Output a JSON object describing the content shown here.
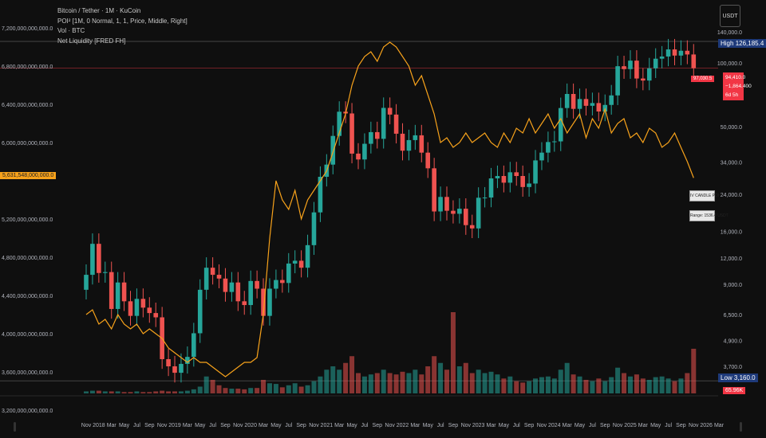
{
  "legend": {
    "symbol": "Bitcoin / Tether · 1M · KuCoin",
    "indicator": "POI² [1M, 0 Normal, 1, 1, Price, Middle, Right]",
    "volume": "Vol · BTC",
    "liquidity": "Net Liquidity [FRED FH]"
  },
  "currency_button": "USDT",
  "labels": {
    "high_tag": "High",
    "high_value": "126,185.4",
    "low_tag": "Low",
    "low_value": "3,160.0",
    "price": "94,410.0",
    "change": "−1,864.400",
    "countdown": "6d 5h",
    "left_price_box": "97,030.5",
    "volume_value": "65.96K",
    "liquidity_value": "5,631,548,000,000.0",
    "poi_title": "IV CANDLE POI",
    "poi_range": "Range: 1536.4 USDT"
  },
  "colors": {
    "up": "#26a69a",
    "down": "#ef5350",
    "liquidity": "#f7a21b",
    "high_label": "#1e3a7a",
    "low_label": "#1e3a7a",
    "price_label": "#f23645",
    "background": "#0f0f0f"
  },
  "chart_data": {
    "type": "candlestick",
    "x_start": "2017-11",
    "interval": "month",
    "btc_close": [
      10000,
      14000,
      10200,
      10300,
      6900,
      9200,
      7500,
      6400,
      7700,
      7000,
      6600,
      6300,
      4000,
      3700,
      3450,
      3800,
      4100,
      5300,
      8500,
      10800,
      10000,
      9600,
      8300,
      9200,
      7500,
      7200,
      9350,
      8600,
      6400,
      8600,
      9450,
      9150,
      11300,
      11650,
      10800,
      13800,
      19700,
      29000,
      33100,
      45200,
      58800,
      57700,
      37300,
      35000,
      41500,
      47100,
      43800,
      61300,
      57000,
      46300,
      38500,
      43200,
      45500,
      37700,
      31800,
      19900,
      23300,
      20050,
      19400,
      20500,
      17150,
      16550,
      23100,
      23150,
      28500,
      29250,
      27200,
      30450,
      29250,
      25950,
      26950,
      34650,
      37700,
      42300,
      42600,
      61200,
      71300,
      60650,
      67500,
      62700,
      64600,
      58950,
      63300,
      70200,
      96400,
      93400,
      102400,
      84350,
      82500,
      94200,
      104600,
      107100,
      115700,
      108200,
      114000,
      109500,
      94410
    ],
    "net_liquidity_trillions": [
      4.2,
      4.25,
      4.1,
      4.15,
      4.05,
      4.2,
      4.1,
      4.05,
      4.1,
      4.0,
      4.05,
      4.0,
      3.95,
      3.85,
      3.8,
      3.75,
      3.7,
      3.75,
      3.7,
      3.7,
      3.65,
      3.6,
      3.55,
      3.6,
      3.65,
      3.7,
      3.7,
      3.75,
      4.2,
      5.0,
      5.6,
      5.4,
      5.3,
      5.5,
      5.2,
      5.4,
      5.5,
      5.6,
      5.7,
      5.9,
      6.1,
      6.3,
      6.6,
      6.8,
      6.9,
      6.95,
      6.85,
      7.0,
      7.05,
      7.0,
      6.9,
      6.8,
      6.6,
      6.7,
      6.5,
      6.3,
      6.0,
      6.05,
      5.95,
      6.0,
      6.1,
      6.0,
      6.05,
      6.1,
      6.0,
      5.95,
      6.1,
      6.0,
      6.15,
      6.1,
      6.25,
      6.1,
      6.2,
      6.3,
      6.15,
      6.25,
      6.1,
      6.2,
      6.3,
      6.05,
      6.25,
      6.15,
      6.35,
      6.1,
      6.2,
      6.25,
      6.05,
      6.1,
      6.0,
      6.15,
      6.1,
      5.95,
      6.0,
      6.1,
      5.95,
      5.8,
      5.63
    ],
    "volume_k": [
      3,
      4,
      4,
      3,
      3,
      3,
      2,
      2,
      3,
      2,
      2,
      3,
      4,
      3,
      3,
      3,
      4,
      6,
      10,
      25,
      20,
      12,
      8,
      7,
      7,
      6,
      8,
      8,
      20,
      15,
      14,
      9,
      12,
      15,
      10,
      12,
      18,
      25,
      35,
      40,
      35,
      45,
      55,
      30,
      25,
      28,
      30,
      35,
      30,
      28,
      32,
      30,
      35,
      28,
      40,
      55,
      45,
      35,
      120,
      40,
      45,
      30,
      35,
      30,
      32,
      28,
      22,
      25,
      18,
      16,
      18,
      22,
      24,
      25,
      22,
      35,
      45,
      28,
      25,
      20,
      18,
      22,
      18,
      24,
      38,
      30,
      25,
      28,
      22,
      20,
      24,
      25,
      22,
      18,
      22,
      30,
      65.96
    ],
    "right_axis": {
      "scale": "log",
      "ticks": [
        "140,000.0",
        "100,000.0",
        "50,000.0",
        "34,000.0",
        "24,000.0",
        "16,000.0",
        "12,000.0",
        "9,000.0",
        "6,500.0",
        "4,900.0",
        "3,700.0"
      ],
      "tick_values": [
        140000,
        100000,
        50000,
        34000,
        24000,
        16000,
        12000,
        9000,
        6500,
        4900,
        3700
      ]
    },
    "left_axis": {
      "scale": "linear",
      "ticks": [
        "7,200,000,000,000.0",
        "6,800,000,000,000.0",
        "6,400,000,000,000.0",
        "6,000,000,000,000.0",
        "5,200,000,000,000.0",
        "4,800,000,000,000.0",
        "4,400,000,000,000.0",
        "4,000,000,000,000.0",
        "3,600,000,000,000.0",
        "3,200,000,000,000.0"
      ],
      "tick_values": [
        7.2,
        6.8,
        6.4,
        6.0,
        5.2,
        4.8,
        4.4,
        4.0,
        3.6,
        3.2
      ]
    },
    "x_ticks": [
      "Nov",
      "2018",
      "Mar",
      "May",
      "Jul",
      "Sep",
      "Nov",
      "2019",
      "Mar",
      "May",
      "Jul",
      "Sep",
      "Nov",
      "2020",
      "Mar",
      "May",
      "Jul",
      "Sep",
      "Nov",
      "2021",
      "Mar",
      "May",
      "Jul",
      "Sep",
      "Nov",
      "2022",
      "Mar",
      "May",
      "Jul",
      "Sep",
      "Nov",
      "2023",
      "Mar",
      "May",
      "Jul",
      "Sep",
      "Nov",
      "2024",
      "Mar",
      "May",
      "Jul",
      "Sep",
      "Nov",
      "2025",
      "Mar",
      "May",
      "Jul",
      "Sep",
      "Nov",
      "2026",
      "Mar"
    ],
    "high": 126185.4,
    "low": 3160.0
  }
}
